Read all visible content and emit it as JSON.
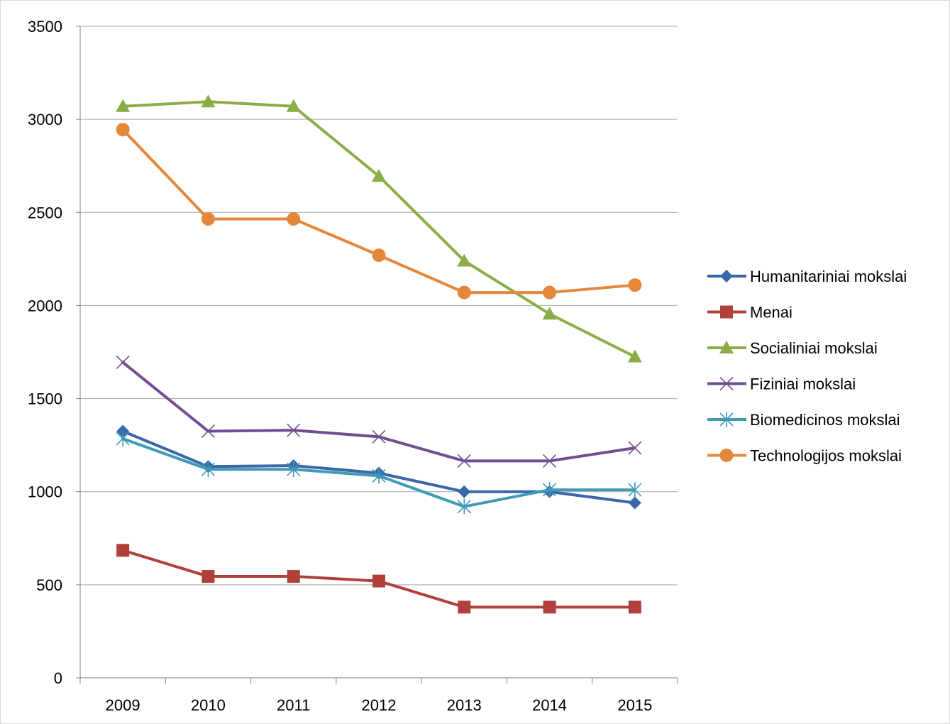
{
  "chart_data": {
    "type": "line",
    "title": "",
    "xlabel": "",
    "ylabel": "",
    "categories": [
      "2009",
      "2010",
      "2011",
      "2012",
      "2013",
      "2014",
      "2015"
    ],
    "ylim": [
      0,
      3500
    ],
    "yticks": [
      0,
      500,
      1000,
      1500,
      2000,
      2500,
      3000,
      3500
    ],
    "grid": "horizontal",
    "legend_position": "right",
    "series": [
      {
        "name": "Humanitariniai mokslai",
        "color": "#3A67A8",
        "marker": "diamond",
        "values": [
          1325,
          1135,
          1140,
          1100,
          1000,
          1000,
          940
        ]
      },
      {
        "name": "Menai",
        "color": "#B1403C",
        "marker": "square",
        "values": [
          685,
          545,
          545,
          520,
          380,
          380,
          380
        ]
      },
      {
        "name": "Socialiniai mokslai",
        "color": "#8BAD48",
        "marker": "triangle",
        "values": [
          3070,
          3095,
          3070,
          2695,
          2240,
          1955,
          1725
        ]
      },
      {
        "name": "Fiziniai mokslai",
        "color": "#714E92",
        "marker": "x",
        "values": [
          1695,
          1325,
          1330,
          1295,
          1165,
          1165,
          1235
        ]
      },
      {
        "name": "Biomedicinos mokslai",
        "color": "#3F9AB6",
        "marker": "star",
        "values": [
          1285,
          1120,
          1120,
          1085,
          920,
          1010,
          1010
        ]
      },
      {
        "name": "Technologijos mokslai",
        "color": "#E5873A",
        "marker": "circle",
        "values": [
          2945,
          2465,
          2465,
          2270,
          2070,
          2070,
          2110
        ]
      }
    ]
  }
}
